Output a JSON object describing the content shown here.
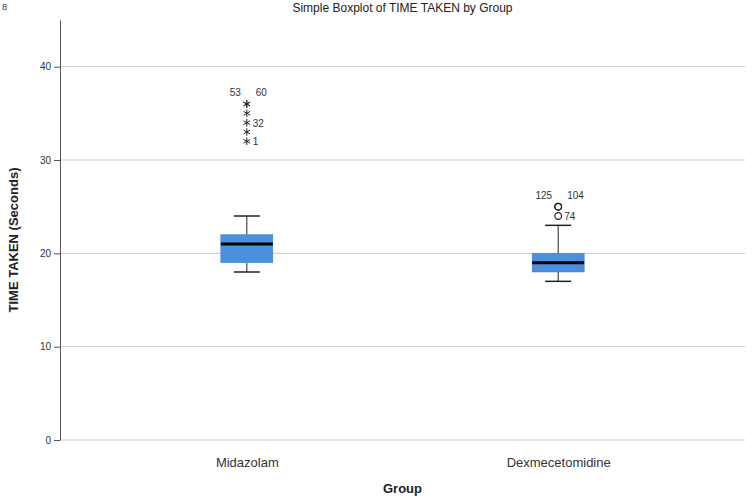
{
  "chart_data": {
    "type": "box",
    "corner_label": "8",
    "title": "Simple Boxplot of TIME TAKEN by Group",
    "x_label": "Group",
    "y_label": "TIME TAKEN  (Seconds)",
    "categories": [
      "Midazolam",
      "Dexmecetomidine"
    ],
    "color": "#4a90dc",
    "ylim": [
      0,
      45
    ],
    "yticks": [
      0,
      10,
      20,
      30,
      40
    ],
    "grid": true,
    "whisker_low": [
      18,
      17
    ],
    "q1": [
      19,
      18
    ],
    "median": [
      21,
      19
    ],
    "q3": [
      22,
      20
    ],
    "whisker_high": [
      24,
      23
    ],
    "outliers": [
      [],
      [
        25,
        25,
        24
      ]
    ],
    "outlier_labels": [
      [],
      [
        "125",
        "104",
        "74"
      ]
    ],
    "extremes": [
      [
        36,
        36,
        35,
        34,
        33,
        32
      ],
      []
    ],
    "extreme_labels": [
      [
        "53",
        "60",
        null,
        "32",
        null,
        "1"
      ],
      []
    ]
  }
}
